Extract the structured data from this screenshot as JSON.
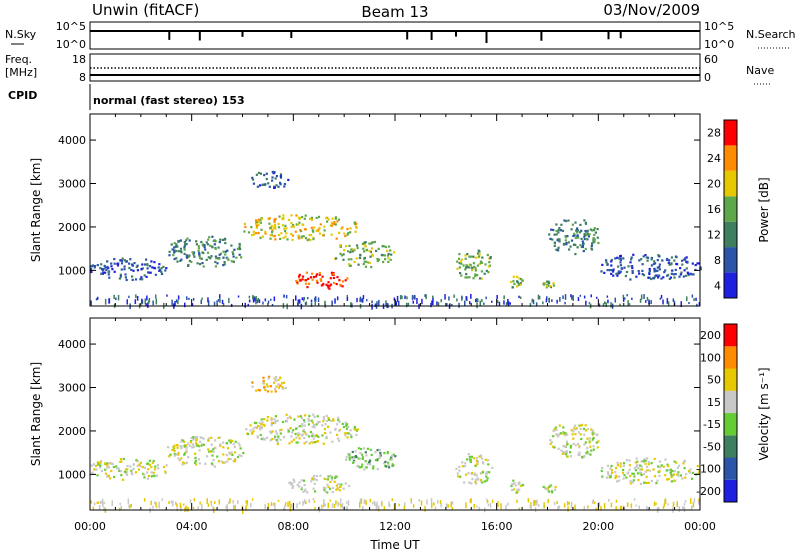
{
  "header": {
    "station": "Unwin (fitACF)",
    "beam": "Beam 13",
    "date": "03/Nov/2009"
  },
  "top_panel": {
    "left_label": "N.Sky",
    "right_label": "N.Search",
    "left_ticks": [
      "10^5",
      "10^0"
    ],
    "right_ticks": [
      "10^5",
      "10^0"
    ]
  },
  "freq_panel": {
    "left_label_1": "Freq.",
    "left_label_2": "[MHz]",
    "right_label": "Nave",
    "left_ticks": [
      "18",
      "8"
    ],
    "right_ticks": [
      "60",
      "0"
    ]
  },
  "cpid_panel": {
    "label": "CPID",
    "text": "normal (fast stereo) 153"
  },
  "chart_data": [
    {
      "type": "heatmap",
      "name": "power",
      "ylabel": "Slant Range [km]",
      "y_ticks": [
        1000,
        2000,
        3000,
        4000
      ],
      "ylim": [
        180,
        4600
      ],
      "xlim": [
        0,
        24
      ],
      "colorbar_label": "Power [dB]",
      "colorbar_ticks": [
        "4",
        "8",
        "12",
        "16",
        "20",
        "24",
        "28"
      ],
      "colors": [
        "#1f1fe0",
        "#2a55a8",
        "#3f7f5f",
        "#5fa84a",
        "#e6c800",
        "#ff8c00",
        "#ff0000"
      ],
      "regions": [
        {
          "t": [
            0.0,
            3.0
          ],
          "r": [
            800,
            1300
          ],
          "level": 1
        },
        {
          "t": [
            3.0,
            6.0
          ],
          "r": [
            1100,
            1800
          ],
          "level": 2
        },
        {
          "t": [
            6.0,
            10.5
          ],
          "r": [
            1700,
            2300
          ],
          "level": 4
        },
        {
          "t": [
            6.3,
            7.8
          ],
          "r": [
            2900,
            3300
          ],
          "level": 1
        },
        {
          "t": [
            8.0,
            10.2
          ],
          "r": [
            600,
            1000
          ],
          "level": 6
        },
        {
          "t": [
            9.5,
            12.0
          ],
          "r": [
            1100,
            1700
          ],
          "level": 3
        },
        {
          "t": [
            14.3,
            15.8
          ],
          "r": [
            800,
            1500
          ],
          "level": 3
        },
        {
          "t": [
            16.5,
            17.0
          ],
          "r": [
            600,
            900
          ],
          "level": 3
        },
        {
          "t": [
            17.8,
            18.3
          ],
          "r": [
            600,
            800
          ],
          "level": 3
        },
        {
          "t": [
            18.0,
            20.0
          ],
          "r": [
            1400,
            2200
          ],
          "level": 2
        },
        {
          "t": [
            20.0,
            24.0
          ],
          "r": [
            800,
            1400
          ],
          "level": 1
        }
      ]
    },
    {
      "type": "heatmap",
      "name": "velocity",
      "ylabel": "Slant Range [km]",
      "y_ticks": [
        1000,
        2000,
        3000,
        4000
      ],
      "ylim": [
        180,
        4600
      ],
      "xlim": [
        0,
        24
      ],
      "colorbar_label": "Velocity [m s⁻¹]",
      "colorbar_ticks": [
        "200",
        "100",
        "50",
        "15",
        "-15",
        "-50",
        "-100",
        "-200"
      ],
      "colors": [
        "#1f1fe0",
        "#2a55a8",
        "#3f7f5f",
        "#66cc33",
        "#c8c8c8",
        "#e6c800",
        "#ff8c00",
        "#ff0000"
      ],
      "regions": [
        {
          "t": [
            0.0,
            3.0
          ],
          "r": [
            900,
            1400
          ],
          "level": 4
        },
        {
          "t": [
            3.0,
            6.0
          ],
          "r": [
            1200,
            1900
          ],
          "level": 4
        },
        {
          "t": [
            6.0,
            10.5
          ],
          "r": [
            1700,
            2400
          ],
          "level": 4
        },
        {
          "t": [
            6.3,
            7.8
          ],
          "r": [
            2900,
            3300
          ],
          "level": 5
        },
        {
          "t": [
            7.8,
            10.2
          ],
          "r": [
            600,
            1000
          ],
          "level": 4
        },
        {
          "t": [
            10.0,
            12.0
          ],
          "r": [
            1100,
            1700
          ],
          "level": 3
        },
        {
          "t": [
            14.3,
            15.8
          ],
          "r": [
            800,
            1500
          ],
          "level": 4
        },
        {
          "t": [
            16.5,
            17.0
          ],
          "r": [
            600,
            900
          ],
          "level": 4
        },
        {
          "t": [
            17.8,
            18.3
          ],
          "r": [
            600,
            800
          ],
          "level": 4
        },
        {
          "t": [
            18.0,
            20.0
          ],
          "r": [
            1400,
            2200
          ],
          "level": 4
        },
        {
          "t": [
            20.0,
            24.0
          ],
          "r": [
            800,
            1400
          ],
          "level": 4
        }
      ]
    }
  ],
  "x_axis": {
    "label": "Time UT",
    "ticks": [
      "00:00",
      "04:00",
      "08:00",
      "12:00",
      "16:00",
      "20:00",
      "00:00"
    ]
  }
}
